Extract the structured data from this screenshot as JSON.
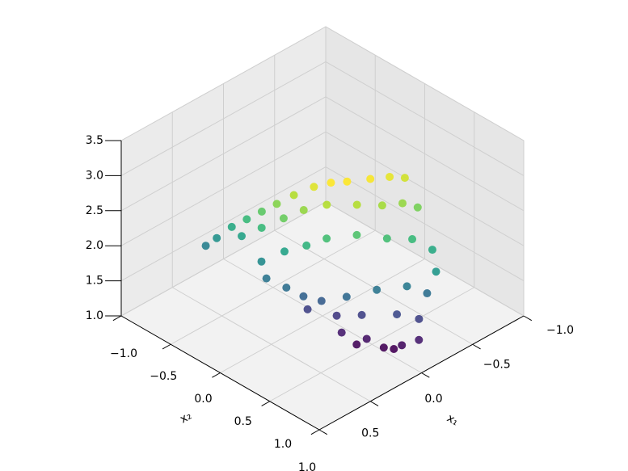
{
  "chart_data": {
    "type": "scatter3d",
    "colormap": "viridis",
    "grid": true,
    "xlabel": "x₁",
    "ylabel": "x₂",
    "xlim": [
      -1,
      1
    ],
    "ylim": [
      -1,
      1
    ],
    "zlim": [
      1,
      3.5
    ],
    "xticks": [
      {
        "value": -1,
        "label": "−1.0"
      },
      {
        "value": -0.5,
        "label": "−0.5"
      },
      {
        "value": 0,
        "label": "0.0"
      },
      {
        "value": 0.5,
        "label": "0.5"
      },
      {
        "value": 1,
        "label": "1.0"
      }
    ],
    "yticks": [
      {
        "value": -1,
        "label": "−1.0"
      },
      {
        "value": -0.5,
        "label": "−0.5"
      },
      {
        "value": 0,
        "label": "0.0"
      },
      {
        "value": 0.5,
        "label": "0.5"
      },
      {
        "value": 1,
        "label": "1.0"
      }
    ],
    "zticks": [
      {
        "value": 1,
        "label": "1.0"
      },
      {
        "value": 1.5,
        "label": "1.5"
      },
      {
        "value": 2,
        "label": "2.0"
      },
      {
        "value": 2.5,
        "label": "2.5"
      },
      {
        "value": 3,
        "label": "3.0"
      },
      3.5
    ],
    "x": [
      0.58,
      0.55,
      0.5,
      0.45,
      0.4,
      0.35,
      0.28,
      0.2,
      0.14,
      0.05,
      -0.1,
      -0.25,
      -0.36,
      0.5,
      0.45,
      0.38,
      0.3,
      0.2,
      0.05,
      -0.1,
      -0.25,
      -0.35,
      0.5,
      0.42,
      0.35,
      0.25,
      0.1,
      -0.05,
      -0.2,
      -0.3,
      -0.22,
      0.5,
      0.45,
      0.38,
      0.3,
      0.2,
      0.05,
      -0.1,
      -0.2,
      0.32,
      0.2,
      0.1,
      -0.05,
      -0.15,
      0.2,
      0.1,
      0.03,
      -0.05,
      -0.12,
      0.15,
      -0.02
    ],
    "y": [
      -0.58,
      -0.5,
      -0.4,
      -0.3,
      -0.2,
      -0.1,
      0.0,
      0.12,
      0.23,
      0.3,
      0.38,
      0.42,
      0.46,
      -0.3,
      -0.15,
      0.0,
      0.12,
      0.25,
      0.4,
      0.5,
      0.55,
      0.6,
      -0.1,
      0.05,
      0.2,
      0.3,
      0.45,
      0.6,
      0.7,
      0.8,
      0.92,
      -0.05,
      0.1,
      0.2,
      0.3,
      0.45,
      0.6,
      0.75,
      0.85,
      0.18,
      0.35,
      0.5,
      0.7,
      0.82,
      0.4,
      0.55,
      0.65,
      0.75,
      0.85,
      0.5,
      0.7
    ],
    "z": [
      2.0,
      2.15,
      2.35,
      2.5,
      2.65,
      2.8,
      2.95,
      3.1,
      3.2,
      3.2,
      3.18,
      3.12,
      3.05,
      2.3,
      2.5,
      2.7,
      2.85,
      2.95,
      2.95,
      2.9,
      2.85,
      2.75,
      2.1,
      2.3,
      2.45,
      2.55,
      2.6,
      2.55,
      2.5,
      2.35,
      2.2,
      1.9,
      1.85,
      1.75,
      1.7,
      1.8,
      1.9,
      1.95,
      1.85,
      1.5,
      1.45,
      1.5,
      1.55,
      1.5,
      1.25,
      1.2,
      1.1,
      1.15,
      1.25,
      1.12,
      1.08
    ]
  }
}
